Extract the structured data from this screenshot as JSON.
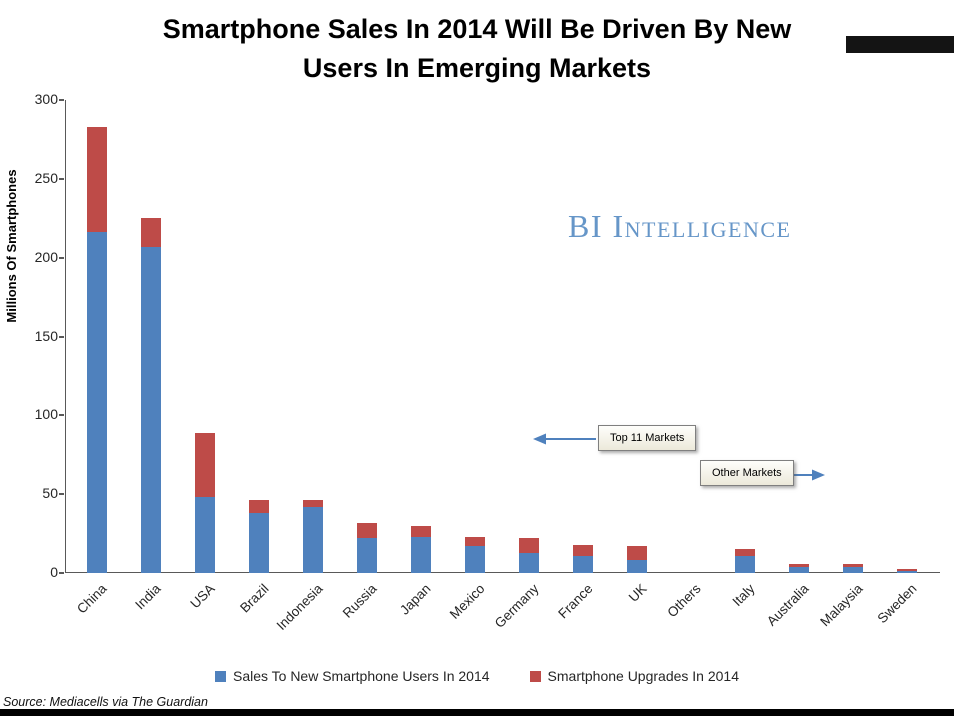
{
  "title": {
    "line1": "Smartphone Sales In 2014 Will Be Driven By New",
    "line2": "Users In Emerging Markets"
  },
  "watermark": "BI Intelligence",
  "annotations": {
    "top11": "Top 11 Markets",
    "others": "Other Markets"
  },
  "source": "Source: Mediacells via The Guardian",
  "chart_data": {
    "type": "bar",
    "stacked": true,
    "title": "Smartphone Sales In 2014 Will Be Driven By New Users In Emerging Markets",
    "xlabel": "",
    "ylabel": "Millions Of  Smartphones",
    "ylim": [
      0,
      300
    ],
    "yticks": [
      0,
      50,
      100,
      150,
      200,
      250,
      300
    ],
    "grid": false,
    "legend_position": "bottom",
    "categories": [
      "China",
      "India",
      "USA",
      "Brazil",
      "Indonesia",
      "Russia",
      "Japan",
      "Mexico",
      "Germany",
      "France",
      "UK",
      "Others",
      "Italy",
      "Australia",
      "Malaysia",
      "Sweden"
    ],
    "series": [
      {
        "name": "Sales To New Smartphone Users In 2014",
        "color": "#4F81BD",
        "values": [
          216,
          207,
          48,
          38,
          42,
          22,
          23,
          17,
          13,
          11,
          8,
          0,
          11,
          4,
          4,
          1.5
        ]
      },
      {
        "name": "Smartphone Upgrades In 2014",
        "color": "#BE4B48",
        "values": [
          67,
          18,
          41,
          8,
          4,
          10,
          7,
          6,
          9,
          7,
          9,
          0,
          4,
          2,
          1.5,
          1
        ]
      }
    ]
  }
}
